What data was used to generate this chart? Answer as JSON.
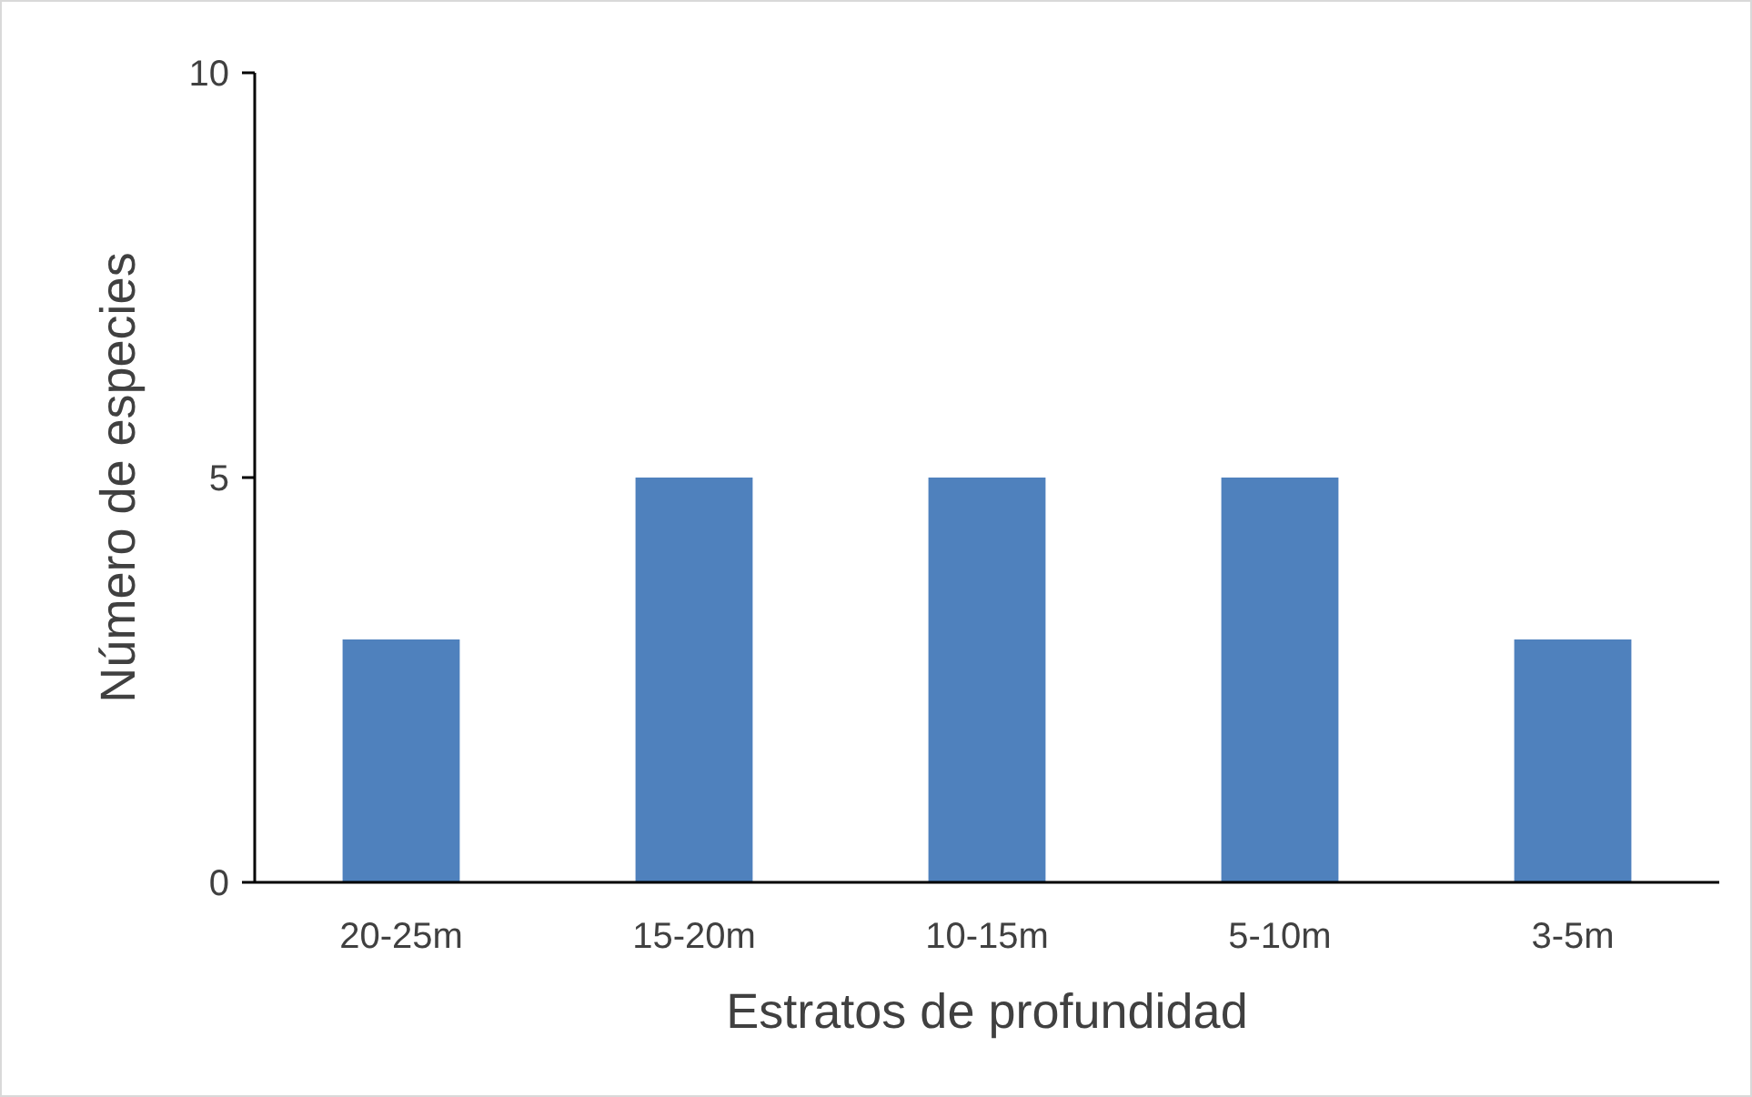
{
  "chart_data": {
    "type": "bar",
    "xlabel": "Estratos de profundidad",
    "ylabel": "Número de especies",
    "categories": [
      "20-25m",
      "15-20m",
      "10-15m",
      "5-10m",
      "3-5m"
    ],
    "values": [
      3,
      5,
      5,
      5,
      3
    ],
    "color": "#4f81bd",
    "ylim": [
      0,
      10
    ],
    "yticks": [
      0,
      5,
      10
    ],
    "grid": false
  }
}
